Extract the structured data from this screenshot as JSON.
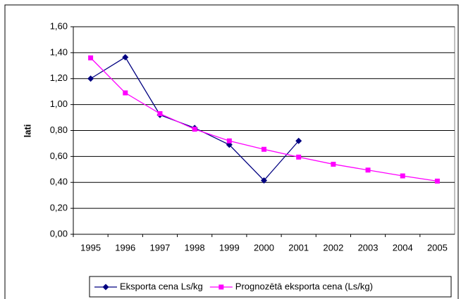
{
  "chart_data": {
    "type": "line",
    "y_label": "lati",
    "categories": [
      "1995",
      "1996",
      "1997",
      "1998",
      "1999",
      "2000",
      "2001",
      "2002",
      "2003",
      "2004",
      "2005"
    ],
    "series": [
      {
        "name": "Eksporta cena Ls/kg",
        "color": "#000080",
        "marker": "diamond",
        "values": [
          1.2,
          1.365,
          0.92,
          0.82,
          0.69,
          0.415,
          0.72,
          null,
          null,
          null,
          null
        ]
      },
      {
        "name": "Prognozētā eksporta cena (Ls/kg)",
        "color": "#ff00ff",
        "marker": "square",
        "values": [
          1.36,
          1.09,
          0.93,
          0.81,
          0.72,
          0.655,
          0.595,
          0.54,
          0.495,
          0.45,
          0.41
        ]
      }
    ],
    "ylim": [
      0,
      1.6
    ],
    "yticks": [
      {
        "value": 0,
        "label": "0,00"
      },
      {
        "value": 0.2,
        "label": "0,20"
      },
      {
        "value": 0.4,
        "label": "0,40"
      },
      {
        "value": 0.6,
        "label": "0,60"
      },
      {
        "value": 0.8,
        "label": "0,80"
      },
      {
        "value": 1.0,
        "label": "1,00"
      },
      {
        "value": 1.2,
        "label": "1,20"
      },
      {
        "value": 1.4,
        "label": "1,40"
      },
      {
        "value": 1.6,
        "label": "1,60"
      }
    ],
    "grid": true,
    "legend": "bottom"
  }
}
